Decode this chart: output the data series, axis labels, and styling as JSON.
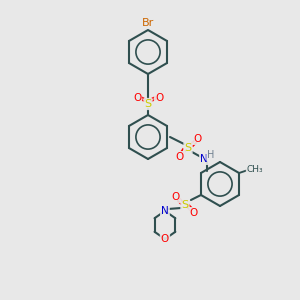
{
  "bg_color": "#e8e8e8",
  "atom_colors": {
    "C": "#2f4f4f",
    "H": "#708090",
    "N": "#0000cd",
    "O": "#ff0000",
    "S": "#cccc00",
    "Br": "#cc6600"
  },
  "bond_color": "#2f4f4f",
  "bond_width": 1.5,
  "figsize": [
    3.0,
    3.0
  ],
  "dpi": 100
}
